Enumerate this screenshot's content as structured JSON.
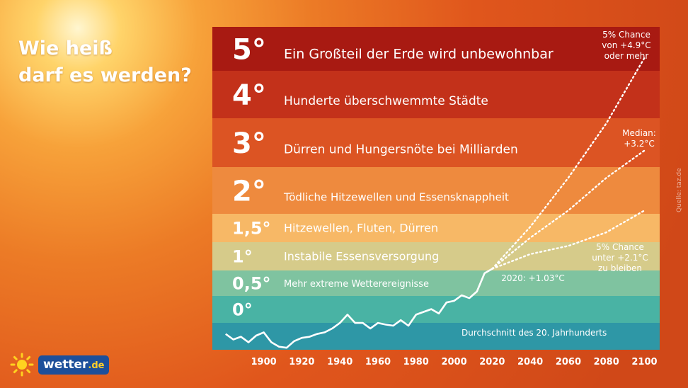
{
  "headline": {
    "line1": "Wie heiß",
    "line2": "darf es werden?"
  },
  "chart_data": {
    "type": "line",
    "tiers": [
      {
        "level": "5°",
        "label": "Ein Großteil der Erde wird unbewohnbar",
        "color": "#a81a12"
      },
      {
        "level": "4°",
        "label": "Hunderte überschwemmte Städte",
        "color": "#c3311a"
      },
      {
        "level": "3°",
        "label": "Dürren und Hungersnöte bei Milliarden",
        "color": "#dc5423"
      },
      {
        "level": "2°",
        "label": "Tödliche Hitzewellen und Essensknappheit",
        "color": "#ee8a3e"
      },
      {
        "level": "1,5°",
        "label": "Hitzewellen, Fluten, Dürren",
        "color": "#f7b866"
      },
      {
        "level": "1°",
        "label": "Instabile Essensversorgung",
        "color": "#d6cb8a"
      },
      {
        "level": "0,5°",
        "label": "Mehr extreme Wetterereignisse",
        "color": "#7fc3a0"
      },
      {
        "level": "0°",
        "label": "",
        "color": "#49b3a4"
      },
      {
        "level": "",
        "label": "Durchschnitt des 20. Jahrhunderts",
        "color": "#2e97a6"
      }
    ],
    "x_ticks": [
      "1900",
      "1920",
      "1940",
      "1960",
      "1980",
      "2000",
      "2020",
      "2040",
      "2060",
      "2080",
      "2100"
    ],
    "observed": {
      "x": [
        1880,
        1884,
        1888,
        1892,
        1896,
        1900,
        1904,
        1908,
        1912,
        1916,
        1920,
        1924,
        1928,
        1932,
        1936,
        1940,
        1944,
        1948,
        1952,
        1956,
        1960,
        1964,
        1968,
        1972,
        1976,
        1980,
        1984,
        1988,
        1992,
        1996,
        2000,
        2004,
        2008,
        2012,
        2016,
        2020
      ],
      "y": [
        -0.15,
        -0.25,
        -0.2,
        -0.3,
        -0.18,
        -0.12,
        -0.3,
        -0.38,
        -0.4,
        -0.28,
        -0.22,
        -0.2,
        -0.15,
        -0.12,
        -0.05,
        0.05,
        0.2,
        0.05,
        0.05,
        -0.05,
        0.05,
        0.02,
        0.0,
        0.1,
        0.0,
        0.2,
        0.25,
        0.3,
        0.22,
        0.42,
        0.45,
        0.55,
        0.5,
        0.62,
        0.95,
        1.03
      ]
    },
    "projections": [
      {
        "name": "5% Chance von +4.9°C oder mehr",
        "x": [
          2020,
          2040,
          2060,
          2080,
          2100
        ],
        "y": [
          1.03,
          1.8,
          2.7,
          3.7,
          4.9
        ]
      },
      {
        "name": "Median: +3.2°C",
        "x": [
          2020,
          2040,
          2060,
          2080,
          2100
        ],
        "y": [
          1.03,
          1.6,
          2.1,
          2.7,
          3.2
        ]
      },
      {
        "name": "5% Chance unter +2.1°C zu bleiben",
        "x": [
          2020,
          2040,
          2060,
          2080,
          2100
        ],
        "y": [
          1.03,
          1.3,
          1.45,
          1.7,
          2.1
        ]
      }
    ],
    "annotations": [
      {
        "lines": [
          "5% Chance",
          "von +4.9°C",
          "oder mehr"
        ]
      },
      {
        "lines": [
          "Median:",
          "+3.2°C"
        ]
      },
      {
        "lines": [
          "5% Chance",
          "unter +2.1°C",
          "zu bleiben"
        ]
      },
      {
        "lines": [
          "2020: +1.03°C"
        ]
      }
    ],
    "xlim": [
      1873,
      2108
    ],
    "source": "Quelle: taz.de"
  },
  "logo": {
    "name": "wetter",
    "tld": ".de"
  }
}
